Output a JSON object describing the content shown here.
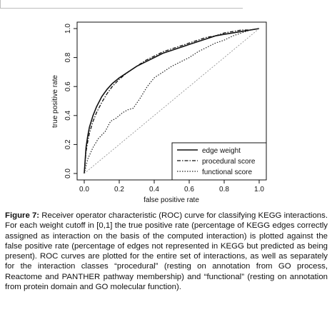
{
  "figure": {
    "caption_label": "Figure 7:",
    "caption_text": " Receiver operator characteristic (ROC) curve for classifying KEGG interactions. For each weight cutoff in [0,1] the true positive rate (percentage of KEGG edges correctly assigned as interaction on the basis of the computed interaction) is plotted against the false positive rate (percentage of edges not represented in KEGG but predicted as being present). ROC curves are plotted for the entire set of interactions, as well as separately for the interaction classes “procedural” (resting on annotation from GO process, Reactome and PANTHER pathway membership) and “functional” (resting on annotation from protein domain and GO molecular function)."
  },
  "chart_data": {
    "type": "line",
    "title": "",
    "xlabel": "false positive rate",
    "ylabel": "true positive rate",
    "xlim": [
      0,
      1
    ],
    "ylim": [
      0,
      1
    ],
    "x_ticks": [
      "0.0",
      "0.2",
      "0.4",
      "0.6",
      "0.8",
      "1.0"
    ],
    "y_ticks": [
      "0.0",
      "0.2",
      "0.4",
      "0.6",
      "0.8",
      "1.0"
    ],
    "grid": false,
    "legend_position": "bottom-right",
    "series": [
      {
        "name": "edge weight",
        "style": "solid",
        "x": [
          0,
          0.01,
          0.02,
          0.03,
          0.05,
          0.07,
          0.1,
          0.13,
          0.16,
          0.2,
          0.25,
          0.3,
          0.35,
          0.4,
          0.45,
          0.5,
          0.55,
          0.6,
          0.65,
          0.7,
          0.75,
          0.8,
          0.85,
          0.9,
          0.95,
          1.0
        ],
        "y": [
          0,
          0.18,
          0.26,
          0.32,
          0.4,
          0.46,
          0.53,
          0.58,
          0.62,
          0.66,
          0.7,
          0.74,
          0.77,
          0.8,
          0.83,
          0.85,
          0.87,
          0.89,
          0.91,
          0.93,
          0.95,
          0.96,
          0.97,
          0.98,
          0.99,
          1.0
        ]
      },
      {
        "name": "procedural score",
        "style": "dashdot",
        "x": [
          0,
          0.01,
          0.02,
          0.03,
          0.05,
          0.07,
          0.1,
          0.13,
          0.16,
          0.2,
          0.25,
          0.3,
          0.35,
          0.4,
          0.45,
          0.5,
          0.55,
          0.6,
          0.65,
          0.7,
          0.75,
          0.8,
          0.85,
          0.9,
          0.95,
          1.0
        ],
        "y": [
          0,
          0.15,
          0.22,
          0.28,
          0.36,
          0.42,
          0.49,
          0.55,
          0.6,
          0.65,
          0.7,
          0.74,
          0.78,
          0.81,
          0.84,
          0.86,
          0.88,
          0.9,
          0.92,
          0.94,
          0.95,
          0.97,
          0.98,
          0.99,
          0.99,
          1.0
        ]
      },
      {
        "name": "functional score",
        "style": "dotted",
        "x": [
          0,
          0.02,
          0.05,
          0.08,
          0.12,
          0.15,
          0.18,
          0.22,
          0.25,
          0.28,
          0.32,
          0.36,
          0.4,
          0.45,
          0.5,
          0.55,
          0.6,
          0.65,
          0.7,
          0.75,
          0.8,
          0.85,
          0.9,
          0.95,
          1.0
        ],
        "y": [
          0,
          0.1,
          0.18,
          0.24,
          0.29,
          0.36,
          0.38,
          0.42,
          0.44,
          0.45,
          0.52,
          0.6,
          0.66,
          0.7,
          0.74,
          0.77,
          0.8,
          0.84,
          0.87,
          0.9,
          0.92,
          0.95,
          0.97,
          0.99,
          1.0
        ]
      },
      {
        "name": "",
        "style": "diagonal",
        "x": [
          0,
          1
        ],
        "y": [
          0,
          1
        ]
      }
    ]
  }
}
